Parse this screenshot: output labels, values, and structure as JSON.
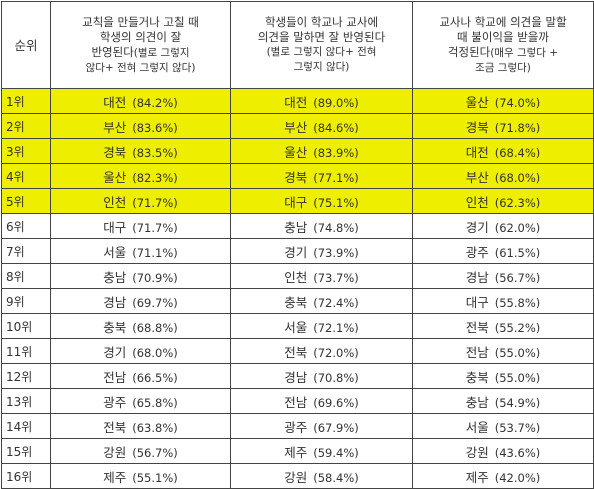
{
  "headers": {
    "rank": "순위",
    "col1": {
      "line1": "교칙을 만들거나 고칠 때",
      "line2": "학생의 의견이 잘",
      "line3": "반영된다",
      "line3_small": "(별로 그렇지",
      "line4": "않다+ 전혀 그렇지 않다)"
    },
    "col2": {
      "line1": "학생들이 학교나 교사에",
      "line2": "의견을 말하면 잘 반영된다",
      "line3": "(별로 그렇지 않다+ 전혀",
      "line4": "그렇지 않다)"
    },
    "col3": {
      "line1": "교사나 학교에 의견을 말할",
      "line2": "때 불이익을 받을까",
      "line3": "걱정된다",
      "line3_small": "(매우 그렇다 +",
      "line4": "조금 그렇다)"
    }
  },
  "rows": [
    {
      "rank": "1위",
      "highlight": true,
      "c1": {
        "region": "대전",
        "pct": "(84.2%)"
      },
      "c2": {
        "region": "대전",
        "pct": "(89.0%)"
      },
      "c3": {
        "region": "울산",
        "pct": "(74.0%)"
      }
    },
    {
      "rank": "2위",
      "highlight": true,
      "c1": {
        "region": "부산",
        "pct": "(83.6%)"
      },
      "c2": {
        "region": "부산",
        "pct": "(84.6%)"
      },
      "c3": {
        "region": "경북",
        "pct": "(71.8%)"
      }
    },
    {
      "rank": "3위",
      "highlight": true,
      "c1": {
        "region": "경북",
        "pct": "(83.5%)"
      },
      "c2": {
        "region": "울산",
        "pct": "(83.9%)"
      },
      "c3": {
        "region": "대전",
        "pct": "(68.4%)"
      }
    },
    {
      "rank": "4위",
      "highlight": true,
      "c1": {
        "region": "울산",
        "pct": "(82.3%)"
      },
      "c2": {
        "region": "경북",
        "pct": "(77.1%)"
      },
      "c3": {
        "region": "부산",
        "pct": "(68.0%)"
      }
    },
    {
      "rank": "5위",
      "highlight": true,
      "c1": {
        "region": "인천",
        "pct": "(71.7%)"
      },
      "c2": {
        "region": "대구",
        "pct": "(75.1%)"
      },
      "c3": {
        "region": "인천",
        "pct": "(62.3%)"
      }
    },
    {
      "rank": "6위",
      "highlight": false,
      "c1": {
        "region": "대구",
        "pct": "(71.7%)"
      },
      "c2": {
        "region": "충남",
        "pct": "(74.8%)"
      },
      "c3": {
        "region": "경기",
        "pct": "(62.0%)"
      }
    },
    {
      "rank": "7위",
      "highlight": false,
      "c1": {
        "region": "서울",
        "pct": "(71.1%)"
      },
      "c2": {
        "region": "경기",
        "pct": "(73.9%)"
      },
      "c3": {
        "region": "광주",
        "pct": "(61.5%)"
      }
    },
    {
      "rank": "8위",
      "highlight": false,
      "c1": {
        "region": "충남",
        "pct": "(70.9%)"
      },
      "c2": {
        "region": "인천",
        "pct": "(73.7%)"
      },
      "c3": {
        "region": "경남",
        "pct": "(56.7%)"
      }
    },
    {
      "rank": "9위",
      "highlight": false,
      "c1": {
        "region": "경남",
        "pct": "(69.7%)"
      },
      "c2": {
        "region": "충북",
        "pct": "(72.4%)"
      },
      "c3": {
        "region": "대구",
        "pct": "(55.8%)"
      }
    },
    {
      "rank": "10위",
      "highlight": false,
      "c1": {
        "region": "충북",
        "pct": "(68.8%)"
      },
      "c2": {
        "region": "서울",
        "pct": "(72.1%)"
      },
      "c3": {
        "region": "전북",
        "pct": "(55.2%)"
      }
    },
    {
      "rank": "11위",
      "highlight": false,
      "c1": {
        "region": "경기",
        "pct": "(68.0%)"
      },
      "c2": {
        "region": "전북",
        "pct": "(72.0%)"
      },
      "c3": {
        "region": "전남",
        "pct": "(55.0%)"
      }
    },
    {
      "rank": "12위",
      "highlight": false,
      "c1": {
        "region": "전남",
        "pct": "(66.5%)"
      },
      "c2": {
        "region": "경남",
        "pct": "(70.8%)"
      },
      "c3": {
        "region": "충북",
        "pct": "(55.0%)"
      }
    },
    {
      "rank": "13위",
      "highlight": false,
      "c1": {
        "region": "광주",
        "pct": "(65.8%)"
      },
      "c2": {
        "region": "전남",
        "pct": "(69.6%)"
      },
      "c3": {
        "region": "충남",
        "pct": "(54.9%)"
      }
    },
    {
      "rank": "14위",
      "highlight": false,
      "c1": {
        "region": "전북",
        "pct": "(63.8%)"
      },
      "c2": {
        "region": "광주",
        "pct": "(67.9%)"
      },
      "c3": {
        "region": "서울",
        "pct": "(53.7%)"
      }
    },
    {
      "rank": "15위",
      "highlight": false,
      "c1": {
        "region": "강원",
        "pct": "(56.7%)"
      },
      "c2": {
        "region": "제주",
        "pct": "(59.4%)"
      },
      "c3": {
        "region": "강원",
        "pct": "(43.6%)"
      }
    },
    {
      "rank": "16위",
      "highlight": false,
      "c1": {
        "region": "제주",
        "pct": "(55.1%)"
      },
      "c2": {
        "region": "강원",
        "pct": "(58.4%)"
      },
      "c3": {
        "region": "제주",
        "pct": "(42.0%)"
      }
    }
  ],
  "colors": {
    "highlight": "#eeee00",
    "border": "#444444",
    "text": "#333333"
  }
}
